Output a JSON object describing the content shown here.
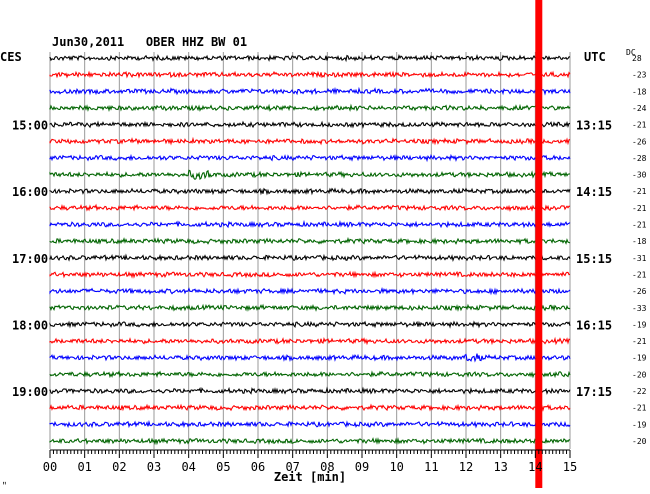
{
  "chart_data": {
    "type": "line",
    "title": "Jun30,2011   OBER HHZ BW 01",
    "left_label": "CES",
    "right_label": "UTC",
    "dc_label": "DC",
    "xlabel": "Zeit [min]",
    "x_ticks": [
      "00",
      "01",
      "02",
      "03",
      "04",
      "05",
      "06",
      "07",
      "08",
      "09",
      "10",
      "11",
      "12",
      "13",
      "14",
      "15"
    ],
    "xlim": [
      0,
      15
    ],
    "left_hour_labels": [
      {
        "row": 4,
        "label": "15:00"
      },
      {
        "row": 8,
        "label": "16:00"
      },
      {
        "row": 12,
        "label": "17:00"
      },
      {
        "row": 16,
        "label": "18:00"
      },
      {
        "row": 20,
        "label": "19:00"
      }
    ],
    "right_hour_labels": [
      {
        "row": 4,
        "label": "13:15"
      },
      {
        "row": 8,
        "label": "14:15"
      },
      {
        "row": 12,
        "label": "15:15"
      },
      {
        "row": 16,
        "label": "16:15"
      },
      {
        "row": 20,
        "label": "17:15"
      }
    ],
    "trace_colors": [
      "#000000",
      "#ff0000",
      "#0000ff",
      "#006400"
    ],
    "dc_values": [
      "28",
      "-23",
      "-18",
      "-24",
      "-21",
      "-26",
      "-28",
      "-30",
      "-21",
      "-21",
      "-21",
      "-18",
      "-31",
      "-21",
      "-26",
      "-33",
      "-19",
      "-21",
      "-19",
      "-20",
      "-22",
      "-21",
      "-19",
      "-20"
    ],
    "marker": {
      "x_minute": 14.1,
      "color": "#ff0000"
    },
    "corner_mark": "ʺ"
  }
}
